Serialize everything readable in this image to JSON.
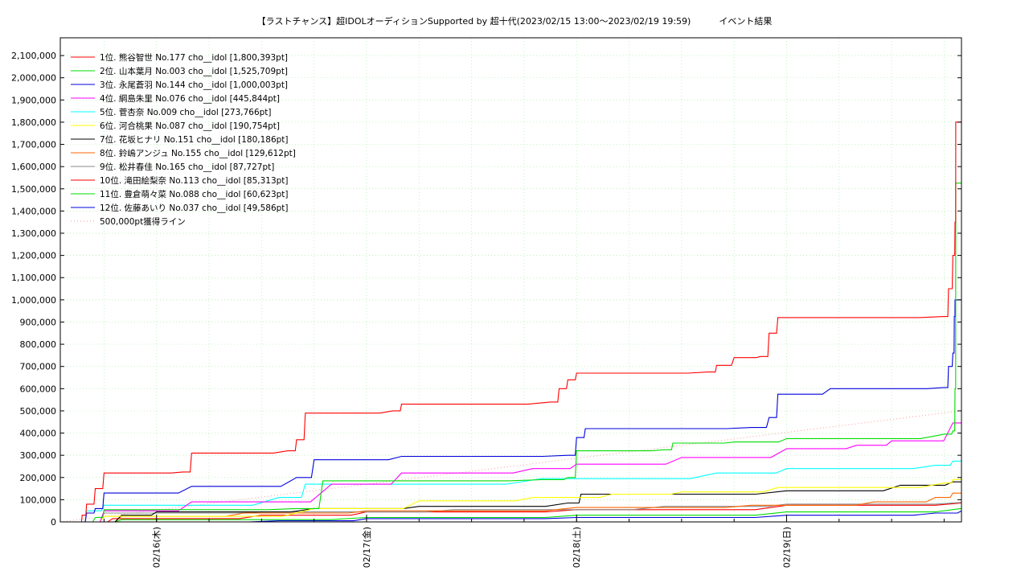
{
  "title": {
    "main": "【ラストチャンス】超IDOLオーディションSupported by 超十代(2023/02/15 13:00～2023/02/19 19:59)",
    "suffix": "イベント結果"
  },
  "chart_data": {
    "type": "line",
    "x_ticks": [
      "02/16(木)",
      "02/17(金)",
      "02/18(土)",
      "02/19(日)"
    ],
    "y_ticks": [
      "0",
      "100,000",
      "200,000",
      "300,000",
      "400,000",
      "500,000",
      "600,000",
      "700,000",
      "800,000",
      "900,000",
      "1,000,000",
      "1,100,000",
      "1,200,000",
      "1,300,000",
      "1,400,000",
      "1,500,000",
      "1,600,000",
      "1,700,000",
      "1,800,000",
      "1,900,000",
      "2,000,000",
      "2,100,000"
    ],
    "xlim": [
      "2023-02-15 13:00",
      "2023-02-19 19:59"
    ],
    "ylim": [
      0,
      2180000
    ],
    "grid": true,
    "legend_position": "top-left",
    "series": [
      {
        "name": "1位. 熊谷智世 No.177 cho__idol [1,800,393pt]",
        "color": "#ff0000",
        "points": [
          [
            "2023-02-15 15:00",
            0
          ],
          [
            "2023-02-15 15:30",
            30000
          ],
          [
            "2023-02-15 16:00",
            80000
          ],
          [
            "2023-02-15 17:00",
            150000
          ],
          [
            "2023-02-15 18:00",
            220000
          ],
          [
            "2023-02-16 03:00",
            225000
          ],
          [
            "2023-02-16 04:00",
            310000
          ],
          [
            "2023-02-16 15:00",
            320000
          ],
          [
            "2023-02-16 16:00",
            370000
          ],
          [
            "2023-02-16 17:00",
            490000
          ],
          [
            "2023-02-17 03:00",
            500000
          ],
          [
            "2023-02-17 04:00",
            530000
          ],
          [
            "2023-02-17 21:00",
            540000
          ],
          [
            "2023-02-17 22:00",
            600000
          ],
          [
            "2023-02-17 23:00",
            640000
          ],
          [
            "2023-02-18 00:00",
            670000
          ],
          [
            "2023-02-18 15:00",
            675000
          ],
          [
            "2023-02-18 16:00",
            705000
          ],
          [
            "2023-02-18 18:00",
            740000
          ],
          [
            "2023-02-18 21:00",
            745000
          ],
          [
            "2023-02-18 22:00",
            850000
          ],
          [
            "2023-02-18 23:00",
            920000
          ],
          [
            "2023-02-19 18:00",
            925000
          ],
          [
            "2023-02-19 18:30",
            1050000
          ],
          [
            "2023-02-19 19:00",
            1200000
          ],
          [
            "2023-02-19 19:15",
            1350000
          ],
          [
            "2023-02-19 19:20",
            1800393
          ],
          [
            "2023-02-19 19:59",
            1800393
          ]
        ]
      },
      {
        "name": "2位. 山本葉月 No.003 cho__idol [1,525,709pt]",
        "color": "#00dd00",
        "points": [
          [
            "2023-02-15 15:00",
            0
          ],
          [
            "2023-02-15 17:00",
            20000
          ],
          [
            "2023-02-15 18:00",
            55000
          ],
          [
            "2023-02-16 16:00",
            60000
          ],
          [
            "2023-02-16 19:00",
            185000
          ],
          [
            "2023-02-17 20:00",
            190000
          ],
          [
            "2023-02-17 23:00",
            200000
          ],
          [
            "2023-02-18 00:00",
            320000
          ],
          [
            "2023-02-18 10:00",
            325000
          ],
          [
            "2023-02-18 11:00",
            355000
          ],
          [
            "2023-02-18 18:00",
            360000
          ],
          [
            "2023-02-19 00:00",
            375000
          ],
          [
            "2023-02-19 18:00",
            395000
          ],
          [
            "2023-02-19 19:00",
            410000
          ],
          [
            "2023-02-19 19:15",
            600000
          ],
          [
            "2023-02-19 19:20",
            1525709
          ],
          [
            "2023-02-19 19:59",
            1525709
          ]
        ]
      },
      {
        "name": "3位. 永尾蒼羽 No.144 cho__idol [1,000,003pt]",
        "color": "#0000dd",
        "points": [
          [
            "2023-02-15 15:00",
            0
          ],
          [
            "2023-02-15 16:00",
            40000
          ],
          [
            "2023-02-15 17:00",
            60000
          ],
          [
            "2023-02-15 18:00",
            130000
          ],
          [
            "2023-02-16 04:00",
            160000
          ],
          [
            "2023-02-16 16:00",
            200000
          ],
          [
            "2023-02-16 18:00",
            280000
          ],
          [
            "2023-02-17 04:00",
            295000
          ],
          [
            "2023-02-17 23:00",
            300000
          ],
          [
            "2023-02-18 00:00",
            380000
          ],
          [
            "2023-02-18 01:00",
            420000
          ],
          [
            "2023-02-18 20:00",
            425000
          ],
          [
            "2023-02-18 22:00",
            470000
          ],
          [
            "2023-02-18 23:00",
            575000
          ],
          [
            "2023-02-19 05:00",
            600000
          ],
          [
            "2023-02-19 18:00",
            605000
          ],
          [
            "2023-02-19 18:30",
            700000
          ],
          [
            "2023-02-19 19:00",
            760000
          ],
          [
            "2023-02-19 19:10",
            925000
          ],
          [
            "2023-02-19 19:15",
            1000003
          ],
          [
            "2023-02-19 19:59",
            1000003
          ]
        ]
      },
      {
        "name": "4位. 綱島朱里 No.076 cho__idol [445,844pt]",
        "color": "#ff00ff",
        "points": [
          [
            "2023-02-15 15:00",
            0
          ],
          [
            "2023-02-15 18:00",
            50000
          ],
          [
            "2023-02-16 04:00",
            90000
          ],
          [
            "2023-02-16 20:00",
            170000
          ],
          [
            "2023-02-17 04:00",
            220000
          ],
          [
            "2023-02-17 19:00",
            240000
          ],
          [
            "2023-02-18 00:00",
            260000
          ],
          [
            "2023-02-18 12:00",
            290000
          ],
          [
            "2023-02-19 00:00",
            330000
          ],
          [
            "2023-02-19 08:00",
            345000
          ],
          [
            "2023-02-19 12:00",
            365000
          ],
          [
            "2023-02-19 19:00",
            445844
          ],
          [
            "2023-02-19 19:59",
            445844
          ]
        ]
      },
      {
        "name": "5位. 菅杏奈 No.009 cho__idol [273,766pt]",
        "color": "#00ffff",
        "points": [
          [
            "2023-02-15 15:00",
            0
          ],
          [
            "2023-02-15 16:00",
            50000
          ],
          [
            "2023-02-15 18:00",
            75000
          ],
          [
            "2023-02-16 14:00",
            110000
          ],
          [
            "2023-02-16 17:00",
            170000
          ],
          [
            "2023-02-17 20:00",
            195000
          ],
          [
            "2023-02-18 16:00",
            220000
          ],
          [
            "2023-02-19 00:00",
            240000
          ],
          [
            "2023-02-19 17:00",
            255000
          ],
          [
            "2023-02-19 19:00",
            273766
          ],
          [
            "2023-02-19 19:59",
            273766
          ]
        ]
      },
      {
        "name": "6位. 河合桃果 No.087 cho__idol [190,754pt]",
        "color": "#ffff00",
        "points": [
          [
            "2023-02-15 15:00",
            0
          ],
          [
            "2023-02-15 18:00",
            25000
          ],
          [
            "2023-02-16 18:00",
            60000
          ],
          [
            "2023-02-17 06:00",
            95000
          ],
          [
            "2023-02-17 19:00",
            110000
          ],
          [
            "2023-02-18 04:00",
            125000
          ],
          [
            "2023-02-18 12:00",
            135000
          ],
          [
            "2023-02-18 23:00",
            155000
          ],
          [
            "2023-02-19 18:00",
            175000
          ],
          [
            "2023-02-19 19:00",
            190754
          ],
          [
            "2023-02-19 19:59",
            190754
          ]
        ]
      },
      {
        "name": "7位. 花坂ヒナリ No.151 cho__idol [180,186pt]",
        "color": "#000000",
        "points": [
          [
            "2023-02-15 15:00",
            0
          ],
          [
            "2023-02-15 20:00",
            30000
          ],
          [
            "2023-02-16 00:00",
            45000
          ],
          [
            "2023-02-16 18:00",
            60000
          ],
          [
            "2023-02-17 06:00",
            70000
          ],
          [
            "2023-02-17 23:00",
            85000
          ],
          [
            "2023-02-18 00:30",
            125000
          ],
          [
            "2023-02-19 00:00",
            140000
          ],
          [
            "2023-02-19 13:00",
            165000
          ],
          [
            "2023-02-19 19:00",
            180186
          ],
          [
            "2023-02-19 19:59",
            180186
          ]
        ]
      },
      {
        "name": "8位. 鈴嶋アンジュ No.155 cho__idol [129,612pt]",
        "color": "#ff6600",
        "points": [
          [
            "2023-02-15 15:00",
            0
          ],
          [
            "2023-02-15 20:00",
            25000
          ],
          [
            "2023-02-16 10:00",
            40000
          ],
          [
            "2023-02-17 00:00",
            50000
          ],
          [
            "2023-02-18 00:00",
            65000
          ],
          [
            "2023-02-18 20:00",
            75000
          ],
          [
            "2023-02-19 10:00",
            90000
          ],
          [
            "2023-02-19 17:00",
            110000
          ],
          [
            "2023-02-19 19:00",
            129612
          ],
          [
            "2023-02-19 19:59",
            129612
          ]
        ]
      },
      {
        "name": "9位. 松井春佳 No.165 cho__idol [87,727pt]",
        "color": "#888888",
        "points": [
          [
            "2023-02-15 15:00",
            0
          ],
          [
            "2023-02-15 18:00",
            40000
          ],
          [
            "2023-02-16 12:00",
            45000
          ],
          [
            "2023-02-17 10:00",
            55000
          ],
          [
            "2023-02-18 10:00",
            70000
          ],
          [
            "2023-02-19 00:00",
            80000
          ],
          [
            "2023-02-19 19:59",
            87727
          ]
        ]
      },
      {
        "name": "10位. 滝田絵梨奈 No.113 cho__idol [85,313pt]",
        "color": "#ff0000",
        "points": [
          [
            "2023-02-15 15:00",
            0
          ],
          [
            "2023-02-15 19:00",
            15000
          ],
          [
            "2023-02-16 12:00",
            30000
          ],
          [
            "2023-02-17 00:00",
            45000
          ],
          [
            "2023-02-18 00:00",
            55000
          ],
          [
            "2023-02-19 00:00",
            75000
          ],
          [
            "2023-02-19 19:59",
            85313
          ]
        ]
      },
      {
        "name": "11位. 豊倉萌々菜 No.088 cho__idol [60,623pt]",
        "color": "#00dd00",
        "points": [
          [
            "2023-02-15 15:00",
            0
          ],
          [
            "2023-02-15 20:00",
            10000
          ],
          [
            "2023-02-17 00:00",
            20000
          ],
          [
            "2023-02-18 00:00",
            30000
          ],
          [
            "2023-02-19 00:00",
            45000
          ],
          [
            "2023-02-19 19:59",
            60623
          ]
        ]
      },
      {
        "name": "12位. 佐藤あいり No.037 cho__idol [49,586pt]",
        "color": "#0000dd",
        "points": [
          [
            "2023-02-15 15:00",
            0
          ],
          [
            "2023-02-16 14:00",
            5000
          ],
          [
            "2023-02-17 00:00",
            15000
          ],
          [
            "2023-02-18 00:00",
            20000
          ],
          [
            "2023-02-19 00:00",
            30000
          ],
          [
            "2023-02-19 17:00",
            40000
          ],
          [
            "2023-02-19 19:59",
            49586
          ]
        ]
      }
    ],
    "reference_line": {
      "name": "500,000pt獲得ライン",
      "color": "#ff9999",
      "points": [
        [
          "2023-02-15 13:00",
          0
        ],
        [
          "2023-02-19 19:59",
          500000
        ]
      ]
    }
  }
}
